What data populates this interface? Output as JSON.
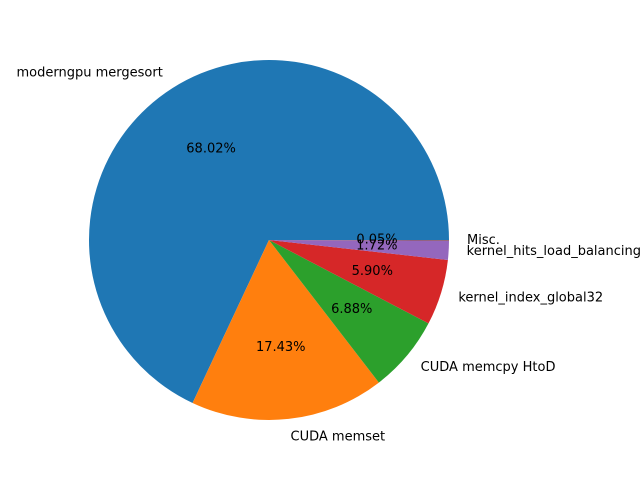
{
  "chart_data": {
    "type": "pie",
    "title": "",
    "start_angle_deg": 0,
    "direction": "counterclockwise",
    "slices": [
      {
        "label": "moderngpu mergesort",
        "value": 68.02,
        "pct_text": "68.02%",
        "color": "#1f77b4"
      },
      {
        "label": "CUDA memset",
        "value": 17.43,
        "pct_text": "17.43%",
        "color": "#ff7f0e"
      },
      {
        "label": "CUDA memcpy HtoD",
        "value": 6.88,
        "pct_text": "6.88%",
        "color": "#2ca02c"
      },
      {
        "label": "kernel_index_global32",
        "value": 5.9,
        "pct_text": "5.90%",
        "color": "#d62728"
      },
      {
        "label": "kernel_hits_load_balancing",
        "value": 1.72,
        "pct_text": "1.72%",
        "color": "#9467bd"
      },
      {
        "label": "Misc.",
        "value": 0.05,
        "pct_text": "0.05%",
        "color": "#8c564b"
      }
    ]
  }
}
